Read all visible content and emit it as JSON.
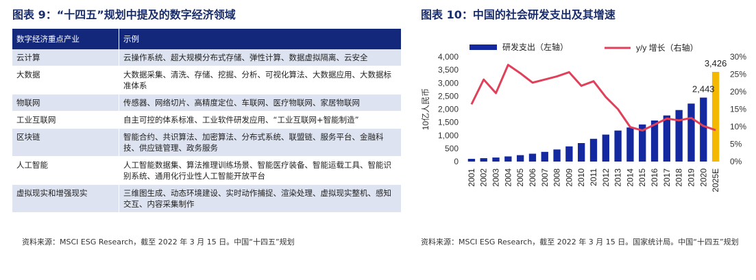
{
  "left": {
    "title": "图表 9：“十四五”规划中提及的数字经济领域",
    "table": {
      "headers": [
        "数字经济重点产业",
        "示例"
      ],
      "rows": [
        {
          "industry": "云计算",
          "examples": "云操作系统、超大规模分布式存储、弹性计算、数据虚拟隔离、云安全"
        },
        {
          "industry": "大数据",
          "examples": "大数据采集、清洗、存储、挖掘、分析、可视化算法、大数据应用、大数据标准体系"
        },
        {
          "industry": "物联网",
          "examples": "传感器、网络切片、高精度定位、车联网、医疗物联网、家居物联网"
        },
        {
          "industry": "工业互联网",
          "examples": "自主可控的体系标准、工业软件研发应用、“工业互联网+智能制造”"
        },
        {
          "industry": "区块链",
          "examples": "智能合约、共识算法、加密算法、分布式系统、联盟链、服务平台、金融科技、供应链管理、政务服务"
        },
        {
          "industry": "人工智能",
          "examples": "人工智能数据集、算法推理训练场景、智能医疗装备、智能运载工具、智能识别系统、通用化行业性人工智能开放平台"
        },
        {
          "industry": "虚拟现实和增强现实",
          "examples": "三维图生成、动态环境建设、实时动作捕捉、渲染处理、虚拟现实整机、感知交互、内容采集制作"
        }
      ]
    },
    "source": "资料来源：MSCI ESG Research，截至 2022 年 3 月 15 日。中国“十四五”规划"
  },
  "right": {
    "title": "图表 10：中国的社会研发支出及其增速",
    "source": "资料来源：MSCI ESG Research，截至 2022 年 3 月 15 日。国家统计局。中国“十四五”规划"
  },
  "chart_data": {
    "type": "bar",
    "categories": [
      "2001",
      "2002",
      "2003",
      "2004",
      "2005",
      "2006",
      "2007",
      "2008",
      "2009",
      "2010",
      "2011",
      "2012",
      "2013",
      "2014",
      "2015",
      "2016",
      "2017",
      "2018",
      "2019",
      "2020",
      "2025E"
    ],
    "series": [
      {
        "name": "研发支出（左轴）",
        "type": "bar",
        "axis": "left",
        "values": [
          104,
          129,
          154,
          197,
          245,
          300,
          371,
          462,
          580,
          706,
          869,
          1030,
          1185,
          1302,
          1417,
          1568,
          1761,
          1968,
          2214,
          2443,
          3426
        ]
      },
      {
        "name": "y/y 增长（右轴）",
        "type": "line",
        "axis": "right",
        "values": [
          16.4,
          23.5,
          19.6,
          27.7,
          25.3,
          22.6,
          23.5,
          24.4,
          25.6,
          21.7,
          23.0,
          18.5,
          15.0,
          9.9,
          8.9,
          10.6,
          12.3,
          11.8,
          12.5,
          10.2,
          9.0
        ]
      }
    ],
    "data_labels": [
      {
        "category": "2020",
        "text": "2,443"
      },
      {
        "category": "2025E",
        "text": "3,426"
      }
    ],
    "ylabel": "10亿人民币",
    "ylim": [
      0,
      4000
    ],
    "yticks": [
      "0",
      "500",
      "1,000",
      "1,500",
      "2,000",
      "2,500",
      "3,000",
      "3,500",
      "4,000"
    ],
    "y2lim": [
      0,
      30
    ],
    "y2ticks": [
      "0%",
      "5%",
      "10%",
      "15%",
      "20%",
      "25%",
      "30%"
    ],
    "legend_position": "top",
    "grid": false,
    "colors": {
      "bar": "#1428a0",
      "highlight_bar": "#f5b800",
      "line": "#e0405a"
    }
  }
}
